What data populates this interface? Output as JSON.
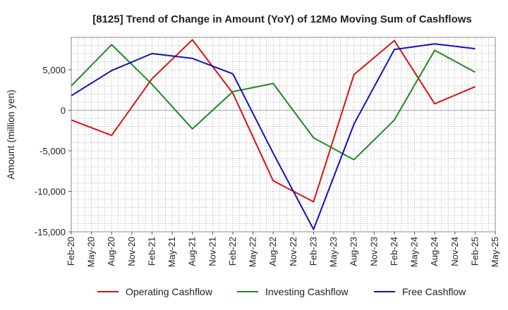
{
  "chart_data": {
    "type": "line",
    "title": "[8125]  Trend of Change in Amount (YoY) of 12Mo Moving Sum of Cashflows",
    "xlabel": "",
    "ylabel": "Amount (million yen)",
    "ylim": [
      -15000,
      9000
    ],
    "y_ticks": [
      5000,
      0,
      -5000,
      -10000,
      -15000
    ],
    "y_tick_labels": [
      "5,000",
      "0",
      "-5,000",
      "-10,000",
      "-15,000"
    ],
    "x_tick_labels": [
      "Feb-20",
      "May-20",
      "Aug-20",
      "Nov-20",
      "Feb-21",
      "May-21",
      "Aug-21",
      "Nov-21",
      "Feb-22",
      "May-22",
      "Aug-22",
      "Nov-22",
      "Feb-23",
      "May-23",
      "Aug-23",
      "Nov-23",
      "Feb-24",
      "May-24",
      "Aug-24",
      "Nov-24",
      "Feb-25",
      "May-25"
    ],
    "x_points": [
      "Feb-20",
      "Aug-20",
      "Feb-21",
      "Aug-21",
      "Feb-22",
      "Aug-22",
      "Feb-23",
      "Aug-23",
      "Feb-24",
      "Aug-24",
      "Feb-25"
    ],
    "grid": true,
    "legend_position": "bottom",
    "series": [
      {
        "name": "Operating Cashflow",
        "color": "#dd1111",
        "values": [
          -1200,
          -3100,
          3900,
          8700,
          2100,
          -8700,
          -11300,
          4400,
          8600,
          800,
          2900
        ]
      },
      {
        "name": "Investing Cashflow",
        "color": "#228822",
        "values": [
          3000,
          8100,
          3200,
          -2300,
          2300,
          3300,
          -3400,
          -6100,
          -1200,
          7400,
          4700
        ]
      },
      {
        "name": "Free Cashflow",
        "color": "#1111bb",
        "values": [
          1800,
          4900,
          7000,
          6400,
          4500,
          -5300,
          -14700,
          -1700,
          7500,
          8200,
          7600
        ]
      }
    ]
  }
}
